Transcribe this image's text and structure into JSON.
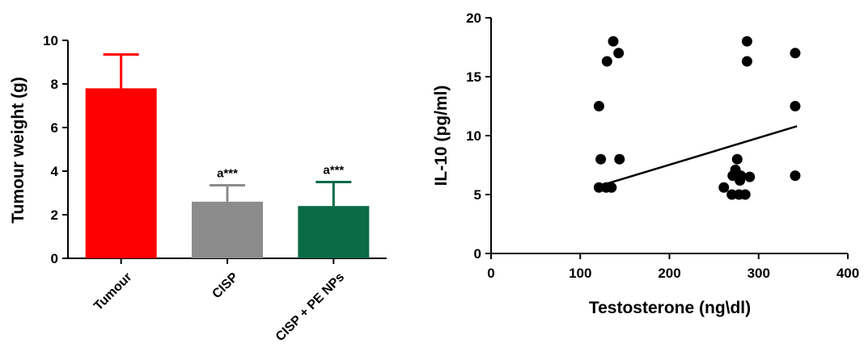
{
  "chart_data": [
    {
      "type": "bar",
      "title": "",
      "xlabel": "",
      "ylabel": "Tumour weight (g)",
      "ylim": [
        0,
        10
      ],
      "yticks": [
        0,
        2,
        4,
        6,
        8,
        10
      ],
      "categories": [
        "Tumour",
        "CISP",
        "CISP + PE NPs"
      ],
      "values": [
        7.8,
        2.6,
        2.4
      ],
      "errors": [
        1.55,
        0.75,
        1.1
      ],
      "annotations": [
        "",
        "a***",
        "a***"
      ],
      "colors": [
        "#ff0000",
        "#8c8c8c",
        "#0a6b47"
      ],
      "grid": false,
      "legend": "none"
    },
    {
      "type": "scatter",
      "title": "",
      "xlabel": "Testosterone  (ng\\dl)",
      "ylabel": "IL-10 (pg/ml)",
      "xlim": [
        0,
        400
      ],
      "ylim": [
        0,
        20
      ],
      "xticks": [
        0,
        100,
        200,
        300,
        400
      ],
      "yticks": [
        0,
        5,
        10,
        15,
        20
      ],
      "x": [
        137,
        130,
        143,
        121,
        123,
        144,
        121,
        129,
        135,
        287,
        287,
        341,
        341,
        276,
        274,
        280,
        271,
        279,
        290,
        261,
        270,
        278,
        285,
        341
      ],
      "y": [
        18,
        16.3,
        17,
        12.5,
        8,
        8,
        5.6,
        5.6,
        5.6,
        18,
        16.3,
        17,
        12.5,
        8,
        7.1,
        6.6,
        6.6,
        6.2,
        6.5,
        5.6,
        5,
        5,
        5,
        6.6
      ],
      "fit_line": {
        "x": [
          120,
          343
        ],
        "y": [
          5.7,
          10.8
        ]
      },
      "marker_color": "#000000",
      "grid": false,
      "legend": "none"
    }
  ]
}
